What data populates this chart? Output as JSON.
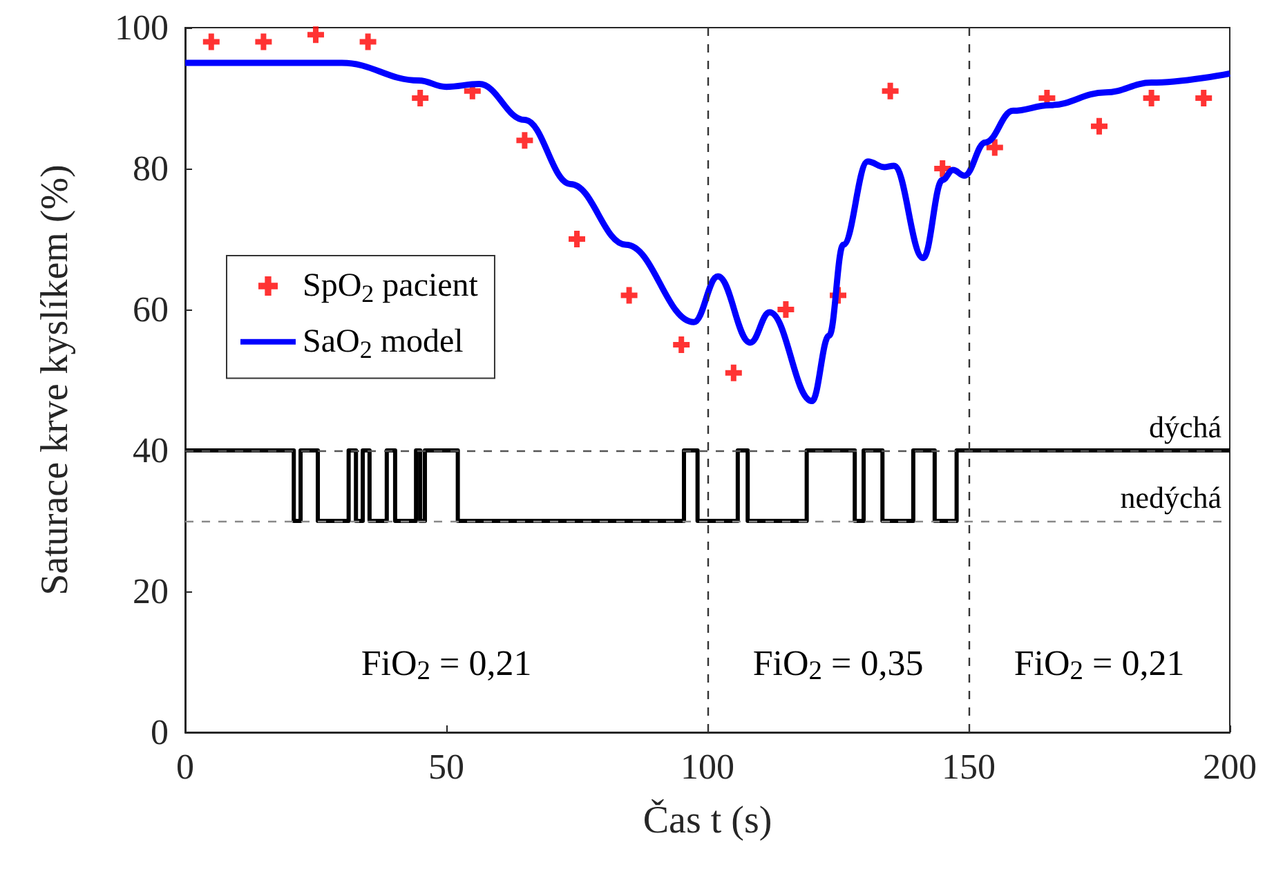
{
  "chart_data": {
    "type": "line",
    "xlabel": "Čas t (s)",
    "ylabel": "Saturace krve kyslíkem (%)",
    "xlim": [
      0,
      200
    ],
    "xticks": [
      0,
      50,
      100,
      150,
      200
    ],
    "ylim": [
      0,
      100
    ],
    "yticks": [
      0,
      20,
      40,
      60,
      80,
      100
    ],
    "grid": false,
    "legend": "left",
    "series": [
      {
        "name": "SpO$_{2}$ pacient",
        "type": "scatter",
        "marker": "cross",
        "color": "#ff0000",
        "x": [
          5,
          15,
          25,
          35,
          45,
          55,
          65,
          75,
          85,
          95,
          105,
          115,
          125,
          135,
          145,
          155,
          165,
          175,
          185,
          195
        ],
        "values": [
          98,
          98,
          99,
          98,
          90,
          91,
          84,
          70,
          62,
          55,
          51,
          60,
          62,
          91,
          80,
          83,
          90,
          86,
          90,
          90
        ]
      },
      {
        "name": "SaO$_{2}$ model",
        "marker": "none",
        "color": "#0000ff",
        "x": [
          0,
          30,
          44.7,
          50,
          56.3,
          65,
          73.8,
          84.4,
          97.4,
          102,
          108.2,
          111.9,
          120,
          123.3,
          126,
          130.7,
          133.9,
          135.7,
          141.3,
          145,
          147,
          149.2,
          153.2,
          158.5,
          165.6,
          176.2,
          185,
          200
        ],
        "values": [
          95,
          95,
          92.5,
          91.6,
          92,
          86.9,
          77.8,
          69.2,
          58.2,
          64.7,
          55.3,
          59.6,
          47,
          56.3,
          69.2,
          81,
          80.2,
          80.4,
          67.3,
          78.4,
          79.8,
          79,
          83.7,
          88.2,
          89,
          90.8,
          92.2,
          93.5
        ]
      },
      {
        "type": "step",
        "marker": "none",
        "color": "#000000",
        "x": [
          0,
          20.8,
          22.1,
          25.4,
          31.3,
          32.7,
          34,
          35.3,
          38.6,
          40.2,
          44.2,
          45,
          45.9,
          52.2,
          95.5,
          98.1,
          105.8,
          107.7,
          119,
          128.2,
          129.9,
          133.5,
          139.4,
          143.5,
          147.7,
          200
        ],
        "values": [
          40,
          30,
          40,
          30,
          40,
          30,
          40,
          30,
          40,
          30,
          40,
          30,
          40,
          30,
          40,
          30,
          40,
          30,
          40,
          30,
          40,
          30,
          40,
          30,
          40,
          40
        ]
      }
    ],
    "ref_lines": [
      {
        "axis": "y",
        "value": 40,
        "label": "dýchá",
        "color": "#555555",
        "line_style": "dashed"
      },
      {
        "axis": "y",
        "value": 30,
        "label": "nedýchá",
        "color": "#888888",
        "line_style": "dashed"
      },
      {
        "axis": "x",
        "value": 100,
        "color": "#333333",
        "line_style": "dashed"
      },
      {
        "axis": "x",
        "value": 150,
        "color": "#333333",
        "line_style": "dashed"
      }
    ],
    "annotations": [
      "FiO$_{2}$ = 0,21",
      "FiO$_{2}$ = 0,35",
      "FiO$_{2}$ = 0,21"
    ]
  }
}
